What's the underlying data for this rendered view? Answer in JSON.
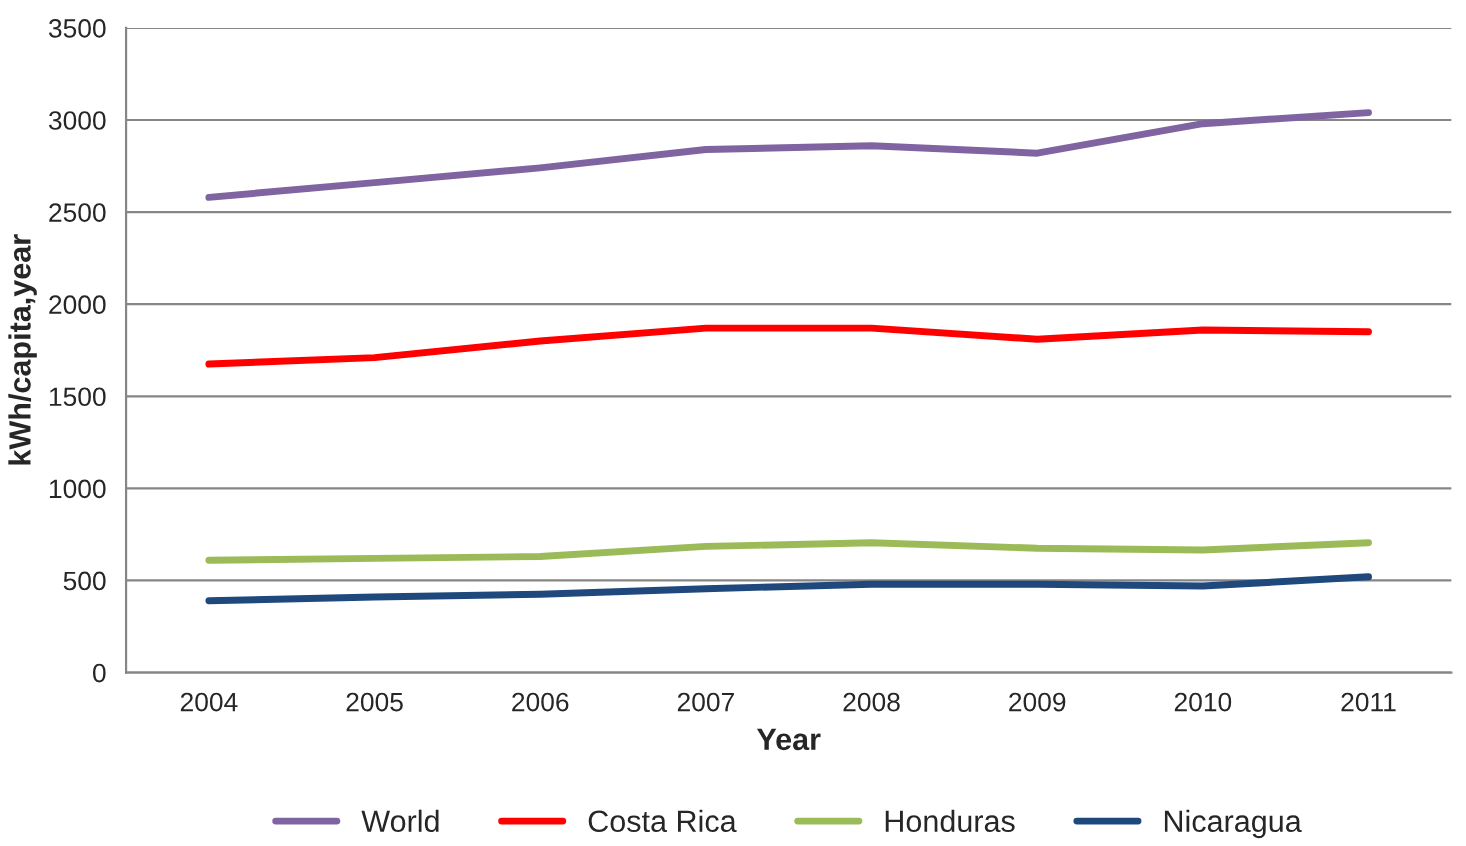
{
  "chart_data": {
    "type": "line",
    "xlabel": "Year",
    "ylabel": "kWh/capita,year",
    "categories": [
      "2004",
      "2005",
      "2006",
      "2007",
      "2008",
      "2009",
      "2010",
      "2011"
    ],
    "series": [
      {
        "name": "World",
        "color": "#8064a2",
        "values": [
          2580,
          2660,
          2740,
          2840,
          2860,
          2820,
          2980,
          3040
        ]
      },
      {
        "name": "Costa Rica",
        "color": "#ff0000",
        "values": [
          1675,
          1710,
          1800,
          1870,
          1870,
          1810,
          1860,
          1850
        ]
      },
      {
        "name": "Honduras",
        "color": "#9bbb59",
        "values": [
          610,
          620,
          630,
          685,
          705,
          675,
          665,
          705
        ]
      },
      {
        "name": "Nicaragua",
        "color": "#1f497d",
        "values": [
          390,
          410,
          425,
          455,
          480,
          480,
          470,
          520
        ]
      }
    ],
    "ylim": [
      0,
      3500
    ],
    "yticks": [
      0,
      500,
      1000,
      1500,
      2000,
      2500,
      3000,
      3500
    ],
    "grid": "y",
    "legend": "bottom",
    "marker": "none",
    "line_style": "solid"
  }
}
